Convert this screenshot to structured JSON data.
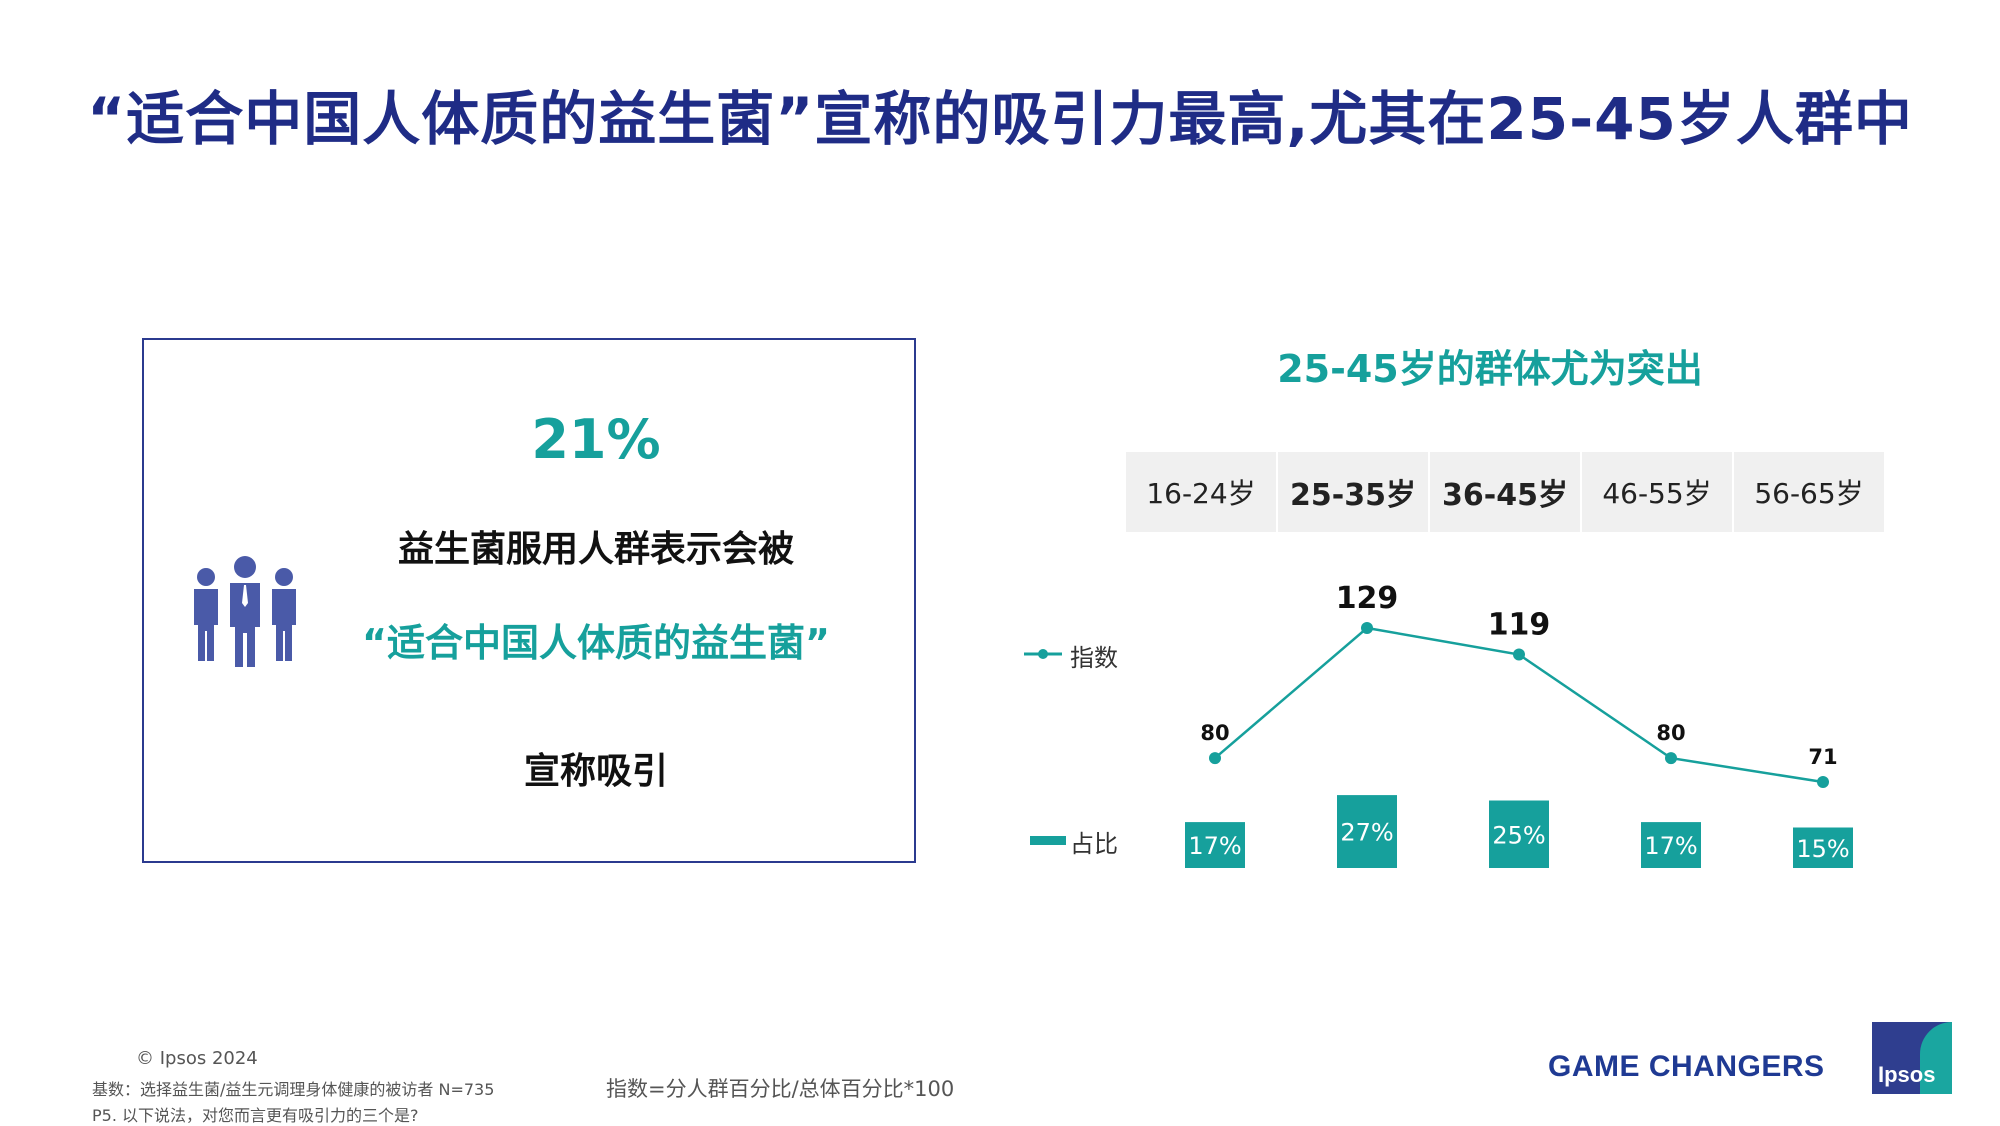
{
  "title": "“适合中国人体质的益生菌”宣称的吸引力最高,尤其在25-45岁人群中",
  "highlight_box": {
    "percent": "21%",
    "line1": "益生菌服用人群表示会被",
    "line2": "“适合中国人体质的益生菌”",
    "line3": "宣称吸引"
  },
  "chart_data": {
    "type": "line",
    "title": "25-45岁的群体尤为突出",
    "categories": [
      "16-24岁",
      "25-35岁",
      "36-45岁",
      "46-55岁",
      "56-65岁"
    ],
    "highlighted_categories": [
      "25-35岁",
      "36-45岁"
    ],
    "series": [
      {
        "name": "指数",
        "type": "line",
        "values": [
          80,
          129,
          119,
          80,
          71
        ],
        "labels": [
          "80",
          "129",
          "119",
          "80",
          "71"
        ]
      },
      {
        "name": "占比",
        "type": "bar",
        "values": [
          17,
          27,
          25,
          17,
          15
        ],
        "labels": [
          "17%",
          "27%",
          "25%",
          "17%",
          "15%"
        ]
      }
    ],
    "colors": {
      "accent": "#16a09c",
      "title": "#1f2c86"
    }
  },
  "footer": {
    "copyright": "© Ipsos 2024",
    "base_note": "基数：选择益生菌/益生元调理身体健康的被访者 N=735",
    "question_note": "P5. 以下说法，对您而言更有吸引力的三个是?",
    "formula": "指数=分人群百分比/总体百分比*100",
    "brand": "GAME CHANGERS",
    "logo_text": "Ipsos"
  }
}
